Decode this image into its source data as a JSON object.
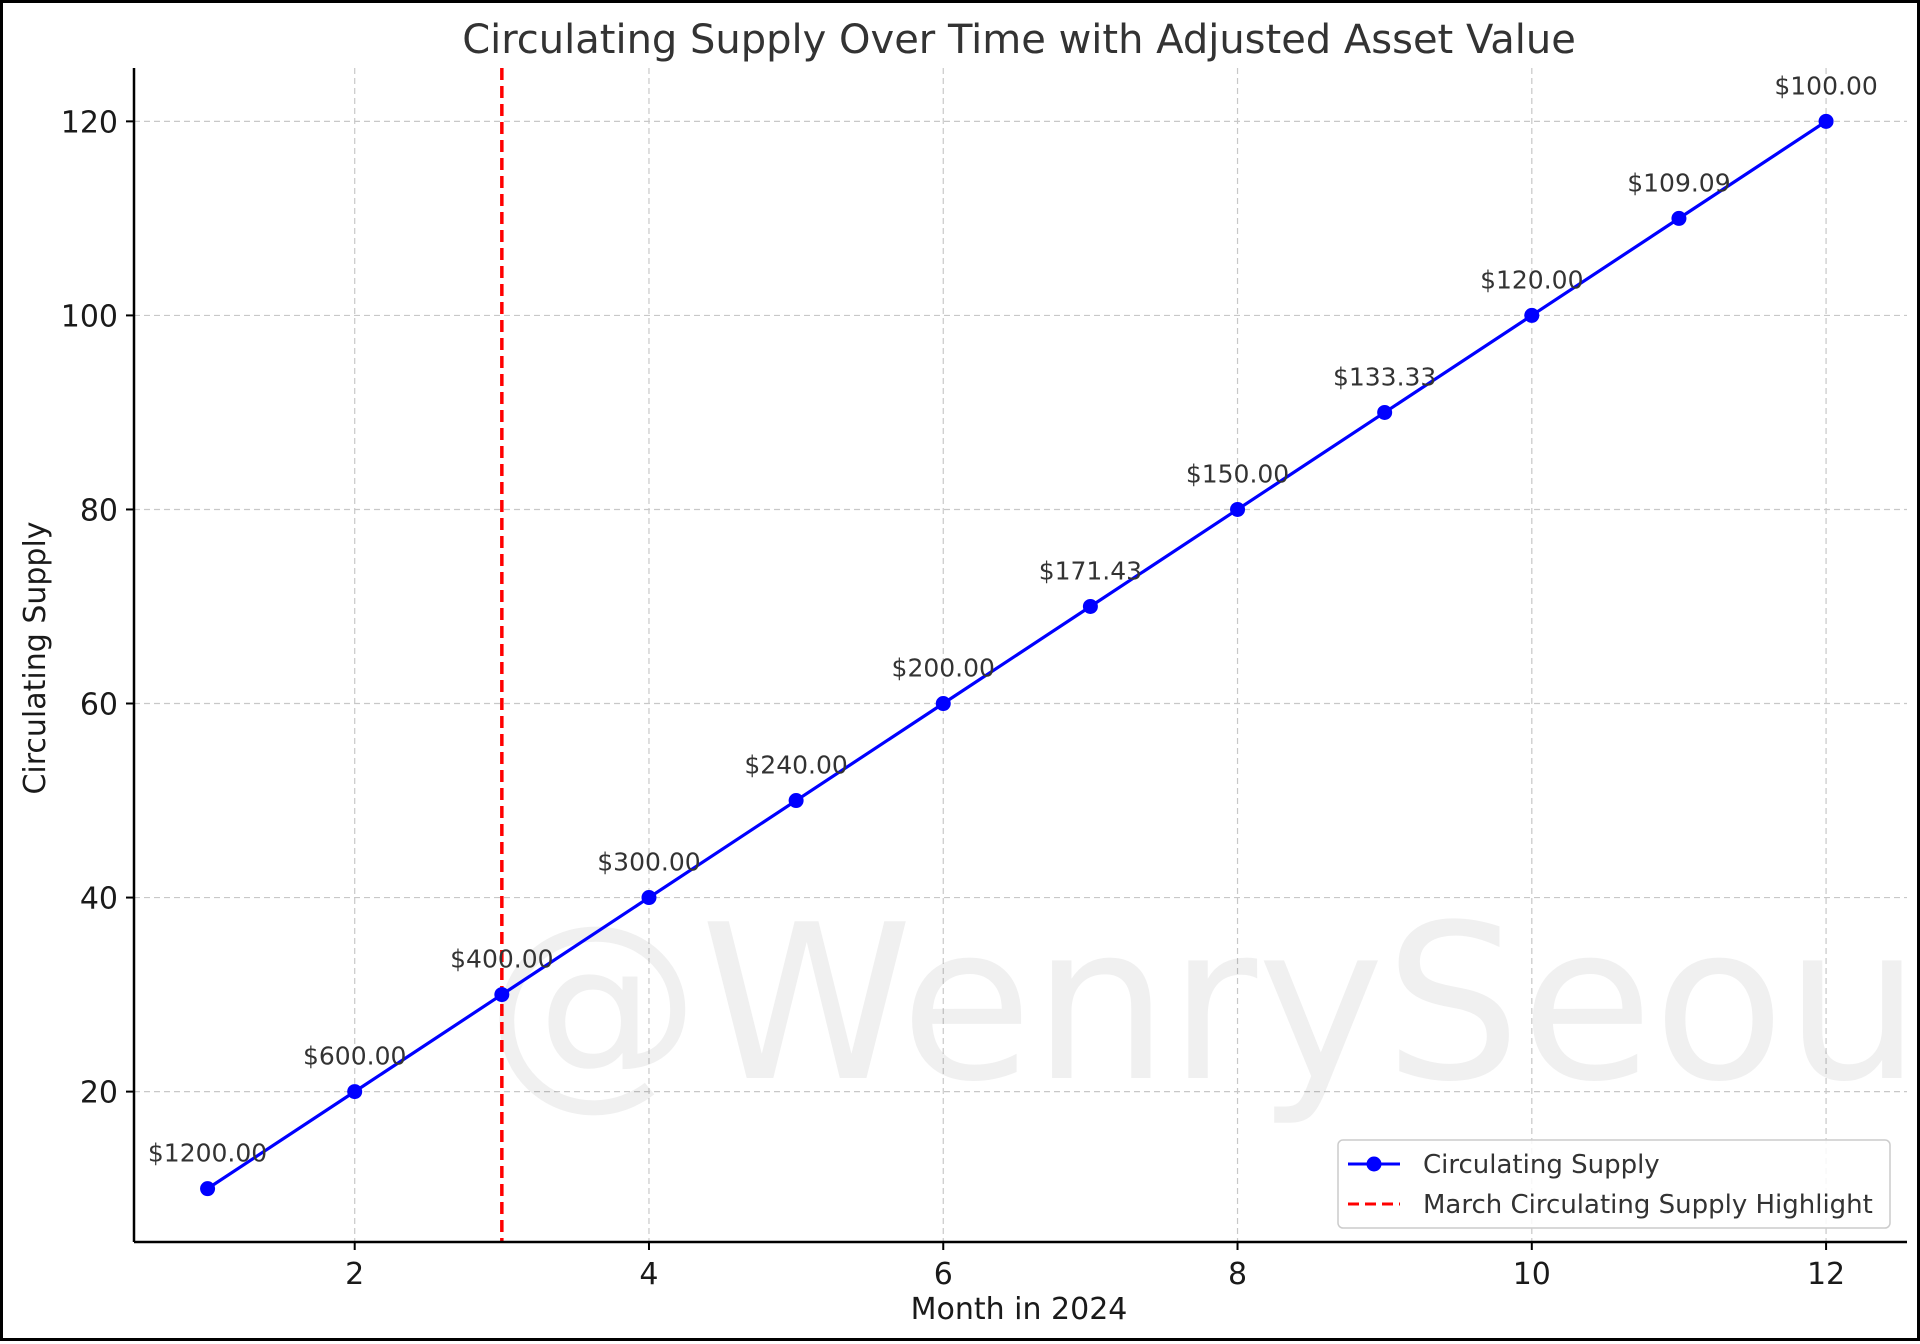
{
  "chart_data": {
    "type": "line",
    "title": "Circulating Supply Over Time with Adjusted Asset Value",
    "xlabel": "Month in 2024",
    "ylabel": "Circulating Supply",
    "xlim": [
      0.5,
      12.55
    ],
    "ylim": [
      4.5,
      125.5
    ],
    "x_ticks": [
      2,
      4,
      6,
      8,
      10,
      12
    ],
    "y_ticks": [
      20,
      40,
      60,
      80,
      100,
      120
    ],
    "grid": true,
    "legend_position": "bottom-right",
    "series": [
      {
        "name": "Circulating Supply",
        "color": "#0000ff",
        "marker": "circle",
        "x": [
          1,
          2,
          3,
          4,
          5,
          6,
          7,
          8,
          9,
          10,
          11,
          12
        ],
        "y": [
          10,
          20,
          30,
          40,
          50,
          60,
          70,
          80,
          90,
          100,
          110,
          120
        ],
        "labels": [
          "$1200.00",
          "$600.00",
          "$400.00",
          "$300.00",
          "$240.00",
          "$200.00",
          "$171.43",
          "$150.00",
          "$133.33",
          "$120.00",
          "$109.09",
          "$100.00"
        ]
      }
    ],
    "vline": {
      "name": "March Circulating Supply Highlight",
      "x": 3,
      "color": "#ff0000",
      "style": "dashed"
    },
    "watermark": "@WenrySeoul"
  }
}
